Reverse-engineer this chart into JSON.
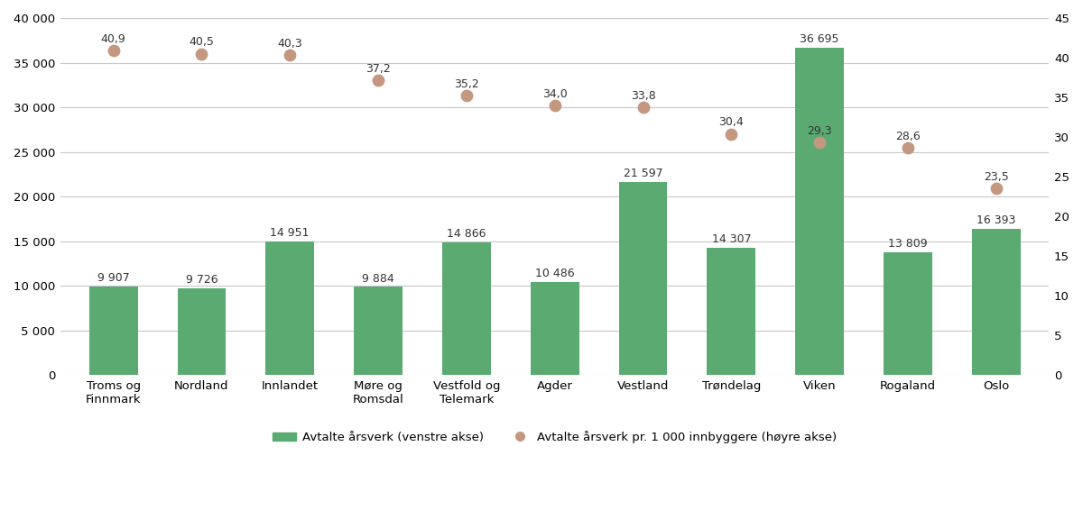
{
  "categories": [
    "Troms og\nFinnmark",
    "Nordland",
    "Innlandet",
    "Møre og\nRomsdal",
    "Vestfold og\nTelemark",
    "Agder",
    "Vestland",
    "Trøndelag",
    "Viken",
    "Rogaland",
    "Oslo"
  ],
  "bar_values": [
    9907,
    9726,
    14951,
    9884,
    14866,
    10486,
    21597,
    14307,
    36695,
    13809,
    16393
  ],
  "dot_values": [
    40.9,
    40.5,
    40.3,
    37.2,
    35.2,
    34.0,
    33.8,
    30.4,
    29.3,
    28.6,
    23.5
  ],
  "bar_labels": [
    "9 907",
    "9 726",
    "14 951",
    "9 884",
    "14 866",
    "10 486",
    "21 597",
    "14 307",
    "36 695",
    "13 809",
    "16 393"
  ],
  "dot_labels": [
    "40,9",
    "40,5",
    "40,3",
    "37,2",
    "35,2",
    "34,0",
    "33,8",
    "30,4",
    "29,3",
    "28,6",
    "23,5"
  ],
  "bar_color": "#5aaa72",
  "dot_color": "#c49880",
  "left_ylim": [
    0,
    40000
  ],
  "right_ylim": [
    0,
    45
  ],
  "left_yticks": [
    0,
    5000,
    10000,
    15000,
    20000,
    25000,
    30000,
    35000,
    40000
  ],
  "left_yticklabels": [
    "0",
    "5 000",
    "10 000",
    "15 000",
    "20 000",
    "25 000",
    "30 000",
    "35 000",
    "40 000"
  ],
  "right_yticks": [
    0,
    5,
    10,
    15,
    20,
    25,
    30,
    35,
    40,
    45
  ],
  "right_yticklabels": [
    "0",
    "5",
    "10",
    "15",
    "20",
    "25",
    "30",
    "35",
    "40",
    "45"
  ],
  "legend_bar_label": "Avtalte årsverk (venstre akse)",
  "legend_dot_label": "Avtalte årsverk pr. 1 000 innbyggere (høyre akse)",
  "background_color": "#ffffff",
  "grid_color": "#c8c8c8",
  "figsize": [
    12.0,
    5.66
  ],
  "dpi": 100
}
